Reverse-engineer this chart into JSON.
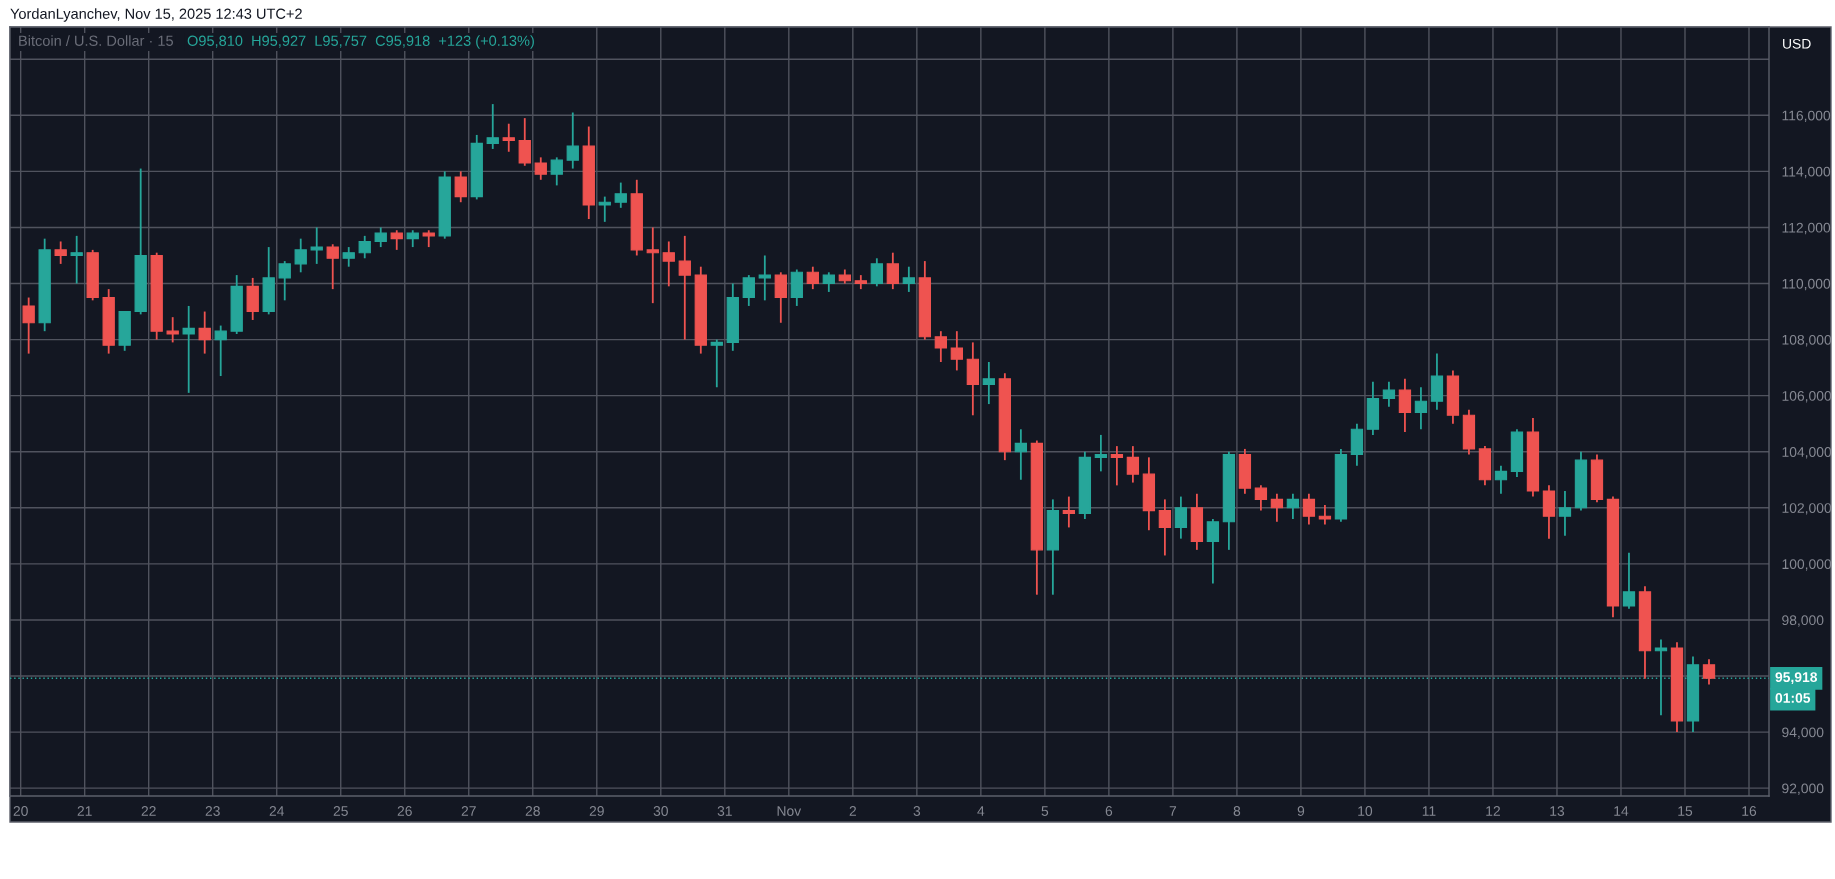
{
  "chart_data": {
    "type": "candlestick",
    "title": "Bitcoin / U.S. Dollar · 15",
    "subtitle": "O95,810  H95,927  L95,757  C95,918  +123 (+0.13%)",
    "annotations": [
      "YordanLyanchev, Nov 15, 2025 12:43 UTC+2",
      "USD",
      "01:05"
    ],
    "x": [
      "2025-10-20T03:00",
      "2025-10-20T09:00",
      "2025-10-20T15:00",
      "2025-10-20T21:00",
      "2025-10-21T03:00",
      "2025-10-21T09:00",
      "2025-10-21T15:00",
      "2025-10-21T21:00",
      "2025-10-22T03:00",
      "2025-10-22T09:00",
      "2025-10-22T15:00",
      "2025-10-22T21:00",
      "2025-10-23T03:00",
      "2025-10-23T09:00",
      "2025-10-23T15:00",
      "2025-10-23T21:00",
      "2025-10-24T03:00",
      "2025-10-24T09:00",
      "2025-10-24T15:00",
      "2025-10-24T21:00",
      "2025-10-25T03:00",
      "2025-10-25T09:00",
      "2025-10-25T15:00",
      "2025-10-25T21:00",
      "2025-10-26T03:00",
      "2025-10-26T09:00",
      "2025-10-26T15:00",
      "2025-10-26T21:00",
      "2025-10-27T03:00",
      "2025-10-27T09:00",
      "2025-10-27T15:00",
      "2025-10-27T21:00",
      "2025-10-28T03:00",
      "2025-10-28T09:00",
      "2025-10-28T15:00",
      "2025-10-28T21:00",
      "2025-10-29T03:00",
      "2025-10-29T09:00",
      "2025-10-29T15:00",
      "2025-10-29T21:00",
      "2025-10-30T03:00",
      "2025-10-30T09:00",
      "2025-10-30T15:00",
      "2025-10-30T21:00",
      "2025-10-31T03:00",
      "2025-10-31T09:00",
      "2025-10-31T15:00",
      "2025-10-31T21:00",
      "2025-11-01T03:00",
      "2025-11-01T09:00",
      "2025-11-01T15:00",
      "2025-11-01T21:00",
      "2025-11-02T03:00",
      "2025-11-02T09:00",
      "2025-11-02T15:00",
      "2025-11-02T21:00",
      "2025-11-03T03:00",
      "2025-11-03T09:00",
      "2025-11-03T15:00",
      "2025-11-03T21:00",
      "2025-11-04T03:00",
      "2025-11-04T09:00",
      "2025-11-04T15:00",
      "2025-11-04T21:00",
      "2025-11-05T03:00",
      "2025-11-05T09:00",
      "2025-11-05T15:00",
      "2025-11-05T21:00",
      "2025-11-06T03:00",
      "2025-11-06T09:00",
      "2025-11-06T15:00",
      "2025-11-06T21:00",
      "2025-11-07T03:00",
      "2025-11-07T09:00",
      "2025-11-07T15:00",
      "2025-11-07T21:00",
      "2025-11-08T03:00",
      "2025-11-08T09:00",
      "2025-11-08T15:00",
      "2025-11-08T21:00",
      "2025-11-09T03:00",
      "2025-11-09T09:00",
      "2025-11-09T15:00",
      "2025-11-09T21:00",
      "2025-11-10T03:00",
      "2025-11-10T09:00",
      "2025-11-10T15:00",
      "2025-11-10T21:00",
      "2025-11-11T03:00",
      "2025-11-11T09:00",
      "2025-11-11T15:00",
      "2025-11-11T21:00",
      "2025-11-12T03:00",
      "2025-11-12T09:00",
      "2025-11-12T15:00",
      "2025-11-12T21:00",
      "2025-11-13T03:00",
      "2025-11-13T09:00",
      "2025-11-13T15:00",
      "2025-11-13T21:00",
      "2025-11-14T03:00",
      "2025-11-14T09:00",
      "2025-11-14T15:00",
      "2025-11-14T21:00",
      "2025-11-15T03:00",
      "2025-11-15T09:00"
    ],
    "ohlc": [
      [
        109200,
        109500,
        107500,
        108600
      ],
      [
        108600,
        111600,
        108300,
        111200
      ],
      [
        111200,
        111500,
        110700,
        111000
      ],
      [
        111000,
        111700,
        110000,
        111100
      ],
      [
        111100,
        111200,
        109400,
        109500
      ],
      [
        109500,
        109800,
        107500,
        107800
      ],
      [
        107800,
        109000,
        107600,
        109000
      ],
      [
        109000,
        114100,
        108900,
        111000
      ],
      [
        111000,
        111100,
        108000,
        108300
      ],
      [
        108300,
        108800,
        107900,
        108200
      ],
      [
        108200,
        109200,
        106100,
        108400
      ],
      [
        108400,
        109000,
        107500,
        108000
      ],
      [
        108000,
        108500,
        106700,
        108300
      ],
      [
        108300,
        110300,
        108200,
        109900
      ],
      [
        109900,
        110200,
        108700,
        109000
      ],
      [
        109000,
        111300,
        108900,
        110200
      ],
      [
        110200,
        110800,
        109400,
        110700
      ],
      [
        110700,
        111600,
        110400,
        111200
      ],
      [
        111200,
        112000,
        110700,
        111300
      ],
      [
        111300,
        111400,
        109800,
        110900
      ],
      [
        110900,
        111300,
        110600,
        111100
      ],
      [
        111100,
        111700,
        110900,
        111500
      ],
      [
        111500,
        112000,
        111300,
        111800
      ],
      [
        111800,
        111900,
        111200,
        111600
      ],
      [
        111600,
        111900,
        111300,
        111800
      ],
      [
        111800,
        111900,
        111300,
        111700
      ],
      [
        111700,
        114000,
        111600,
        113800
      ],
      [
        113800,
        114000,
        112900,
        113100
      ],
      [
        113100,
        115300,
        113000,
        115000
      ],
      [
        115000,
        116400,
        114800,
        115200
      ],
      [
        115200,
        115700,
        114700,
        115100
      ],
      [
        115100,
        115900,
        114200,
        114300
      ],
      [
        114300,
        114500,
        113700,
        113900
      ],
      [
        113900,
        114500,
        113500,
        114400
      ],
      [
        114400,
        116100,
        114100,
        114900
      ],
      [
        114900,
        115600,
        112300,
        112800
      ],
      [
        112800,
        113100,
        112200,
        112900
      ],
      [
        112900,
        113600,
        112700,
        113200
      ],
      [
        113200,
        113700,
        111000,
        111200
      ],
      [
        111200,
        112000,
        109300,
        111100
      ],
      [
        111100,
        111500,
        109900,
        110800
      ],
      [
        110800,
        111700,
        108000,
        110300
      ],
      [
        110300,
        110600,
        107500,
        107800
      ],
      [
        107800,
        108000,
        106300,
        107900
      ],
      [
        107900,
        110000,
        107600,
        109500
      ],
      [
        109500,
        110300,
        109200,
        110200
      ],
      [
        110200,
        111000,
        109400,
        110300
      ],
      [
        110300,
        110400,
        108600,
        109500
      ],
      [
        109500,
        110500,
        109200,
        110400
      ],
      [
        110400,
        110600,
        109800,
        110000
      ],
      [
        110000,
        110400,
        109700,
        110300
      ],
      [
        110300,
        110500,
        110000,
        110100
      ],
      [
        110100,
        110300,
        109800,
        110000
      ],
      [
        110000,
        110900,
        109900,
        110700
      ],
      [
        110700,
        111100,
        109800,
        110000
      ],
      [
        110000,
        110600,
        109700,
        110200
      ],
      [
        110200,
        110800,
        108000,
        108100
      ],
      [
        108100,
        108300,
        107200,
        107700
      ],
      [
        107700,
        108300,
        106900,
        107300
      ],
      [
        107300,
        107900,
        105300,
        106400
      ],
      [
        106400,
        107200,
        105700,
        106600
      ],
      [
        106600,
        106800,
        103700,
        104000
      ],
      [
        104000,
        104800,
        103000,
        104300
      ],
      [
        104300,
        104400,
        98900,
        100500
      ],
      [
        100500,
        102300,
        98900,
        101900
      ],
      [
        101900,
        102400,
        101300,
        101800
      ],
      [
        101800,
        104000,
        101600,
        103800
      ],
      [
        103800,
        104600,
        103300,
        103900
      ],
      [
        103900,
        104200,
        102800,
        103800
      ],
      [
        103800,
        104200,
        102900,
        103200
      ],
      [
        103200,
        103800,
        101200,
        101900
      ],
      [
        101900,
        102300,
        100300,
        101300
      ],
      [
        101300,
        102400,
        100900,
        102000
      ],
      [
        102000,
        102500,
        100500,
        100800
      ],
      [
        100800,
        101600,
        99300,
        101500
      ],
      [
        101500,
        104000,
        100500,
        103900
      ],
      [
        103900,
        104100,
        102500,
        102700
      ],
      [
        102700,
        102800,
        101900,
        102300
      ],
      [
        102300,
        102500,
        101500,
        102000
      ],
      [
        102000,
        102500,
        101600,
        102300
      ],
      [
        102300,
        102500,
        101400,
        101700
      ],
      [
        101700,
        102100,
        101400,
        101600
      ],
      [
        101600,
        104100,
        101500,
        103900
      ],
      [
        103900,
        105000,
        103500,
        104800
      ],
      [
        104800,
        106500,
        104600,
        105900
      ],
      [
        105900,
        106500,
        105600,
        106200
      ],
      [
        106200,
        106600,
        104700,
        105400
      ],
      [
        105400,
        106300,
        104800,
        105800
      ],
      [
        105800,
        107500,
        105500,
        106700
      ],
      [
        106700,
        106900,
        105000,
        105300
      ],
      [
        105300,
        105500,
        103900,
        104100
      ],
      [
        104100,
        104200,
        102800,
        103000
      ],
      [
        103000,
        103500,
        102500,
        103300
      ],
      [
        103300,
        104800,
        103100,
        104700
      ],
      [
        104700,
        105200,
        102400,
        102600
      ],
      [
        102600,
        102800,
        100900,
        101700
      ],
      [
        101700,
        102600,
        101000,
        102000
      ],
      [
        102000,
        104000,
        101900,
        103700
      ],
      [
        103700,
        103900,
        102200,
        102300
      ],
      [
        102300,
        102400,
        98100,
        98500
      ],
      [
        98500,
        100400,
        98400,
        99000
      ],
      [
        99000,
        99200,
        95900,
        96900
      ],
      [
        96900,
        97300,
        94600,
        97000
      ],
      [
        97000,
        97200,
        94000,
        94400
      ],
      [
        94400,
        96700,
        94000,
        96400
      ],
      [
        96400,
        96600,
        95700,
        95918
      ]
    ],
    "colors": [
      "#ef5350",
      "#26a69a",
      "#ef5350",
      "#26a69a",
      "#ef5350",
      "#ef5350",
      "#26a69a",
      "#26a69a",
      "#ef5350",
      "#ef5350",
      "#26a69a",
      "#ef5350",
      "#26a69a",
      "#26a69a",
      "#ef5350",
      "#26a69a",
      "#26a69a",
      "#26a69a",
      "#26a69a",
      "#ef5350",
      "#26a69a",
      "#26a69a",
      "#26a69a",
      "#ef5350",
      "#26a69a",
      "#ef5350",
      "#26a69a",
      "#ef5350",
      "#26a69a",
      "#26a69a",
      "#ef5350",
      "#ef5350",
      "#ef5350",
      "#26a69a",
      "#26a69a",
      "#ef5350",
      "#26a69a",
      "#26a69a",
      "#ef5350",
      "#ef5350",
      "#ef5350",
      "#ef5350",
      "#ef5350",
      "#26a69a",
      "#26a69a",
      "#26a69a",
      "#26a69a",
      "#ef5350",
      "#26a69a",
      "#ef5350",
      "#26a69a",
      "#ef5350",
      "#ef5350",
      "#26a69a",
      "#ef5350",
      "#26a69a",
      "#ef5350",
      "#ef5350",
      "#ef5350",
      "#ef5350",
      "#26a69a",
      "#ef5350",
      "#26a69a",
      "#ef5350",
      "#26a69a",
      "#ef5350",
      "#26a69a",
      "#26a69a",
      "#ef5350",
      "#ef5350",
      "#ef5350",
      "#ef5350",
      "#26a69a",
      "#ef5350",
      "#26a69a",
      "#26a69a",
      "#ef5350",
      "#ef5350",
      "#ef5350",
      "#26a69a",
      "#ef5350",
      "#ef5350",
      "#26a69a",
      "#26a69a",
      "#26a69a",
      "#26a69a",
      "#ef5350",
      "#26a69a",
      "#26a69a",
      "#ef5350",
      "#ef5350",
      "#ef5350",
      "#26a69a",
      "#26a69a",
      "#ef5350",
      "#ef5350",
      "#26a69a",
      "#26a69a",
      "#ef5350",
      "#ef5350",
      "#26a69a",
      "#ef5350",
      "#26a69a",
      "#ef5350",
      "#26a69a",
      "#ef5350"
    ],
    "xlim": [
      "2025-10-19T20:00",
      "2025-11-16T07:30"
    ],
    "xticks": [
      {
        "value": "2025-10-20",
        "label": "20"
      },
      {
        "value": "2025-10-21",
        "label": "21"
      },
      {
        "value": "2025-10-22",
        "label": "22"
      },
      {
        "value": "2025-10-23",
        "label": "23"
      },
      {
        "value": "2025-10-24",
        "label": "24"
      },
      {
        "value": "2025-10-25",
        "label": "25"
      },
      {
        "value": "2025-10-26",
        "label": "26"
      },
      {
        "value": "2025-10-27",
        "label": "27"
      },
      {
        "value": "2025-10-28",
        "label": "28"
      },
      {
        "value": "2025-10-29",
        "label": "29"
      },
      {
        "value": "2025-10-30",
        "label": "30"
      },
      {
        "value": "2025-10-31",
        "label": "31"
      },
      {
        "value": "2025-11-01",
        "label": "Nov"
      },
      {
        "value": "2025-11-02",
        "label": "2"
      },
      {
        "value": "2025-11-03",
        "label": "3"
      },
      {
        "value": "2025-11-04",
        "label": "4"
      },
      {
        "value": "2025-11-05",
        "label": "5"
      },
      {
        "value": "2025-11-06",
        "label": "6"
      },
      {
        "value": "2025-11-07",
        "label": "7"
      },
      {
        "value": "2025-11-08",
        "label": "8"
      },
      {
        "value": "2025-11-09",
        "label": "9"
      },
      {
        "value": "2025-11-10",
        "label": "10"
      },
      {
        "value": "2025-11-11",
        "label": "11"
      },
      {
        "value": "2025-11-12",
        "label": "12"
      },
      {
        "value": "2025-11-13",
        "label": "13"
      },
      {
        "value": "2025-11-14",
        "label": "14"
      },
      {
        "value": "2025-11-15",
        "label": "15"
      },
      {
        "value": "2025-11-16",
        "label": "16"
      }
    ],
    "ylim": [
      91720,
      119150
    ],
    "yticks": [
      {
        "value": 92000,
        "label": "92,000"
      },
      {
        "value": 94000,
        "label": "94,000"
      },
      {
        "value": 96000,
        "label": null
      },
      {
        "value": 98000,
        "label": "98,000"
      },
      {
        "value": 100000,
        "label": "100,000"
      },
      {
        "value": 102000,
        "label": "102,000"
      },
      {
        "value": 104000,
        "label": "104,000"
      },
      {
        "value": 106000,
        "label": "106,000"
      },
      {
        "value": 108000,
        "label": "108,000"
      },
      {
        "value": 110000,
        "label": "110,000"
      },
      {
        "value": 112000,
        "label": "112,000"
      },
      {
        "value": 114000,
        "label": "114,000"
      },
      {
        "value": 116000,
        "label": "116,000"
      },
      {
        "value": 118000,
        "label": null
      }
    ],
    "grid": true,
    "ref_lines": [
      {
        "axis": "y",
        "value": 95918,
        "label": "95,918",
        "color": "#26a69a",
        "line_style": "dotted"
      }
    ]
  }
}
